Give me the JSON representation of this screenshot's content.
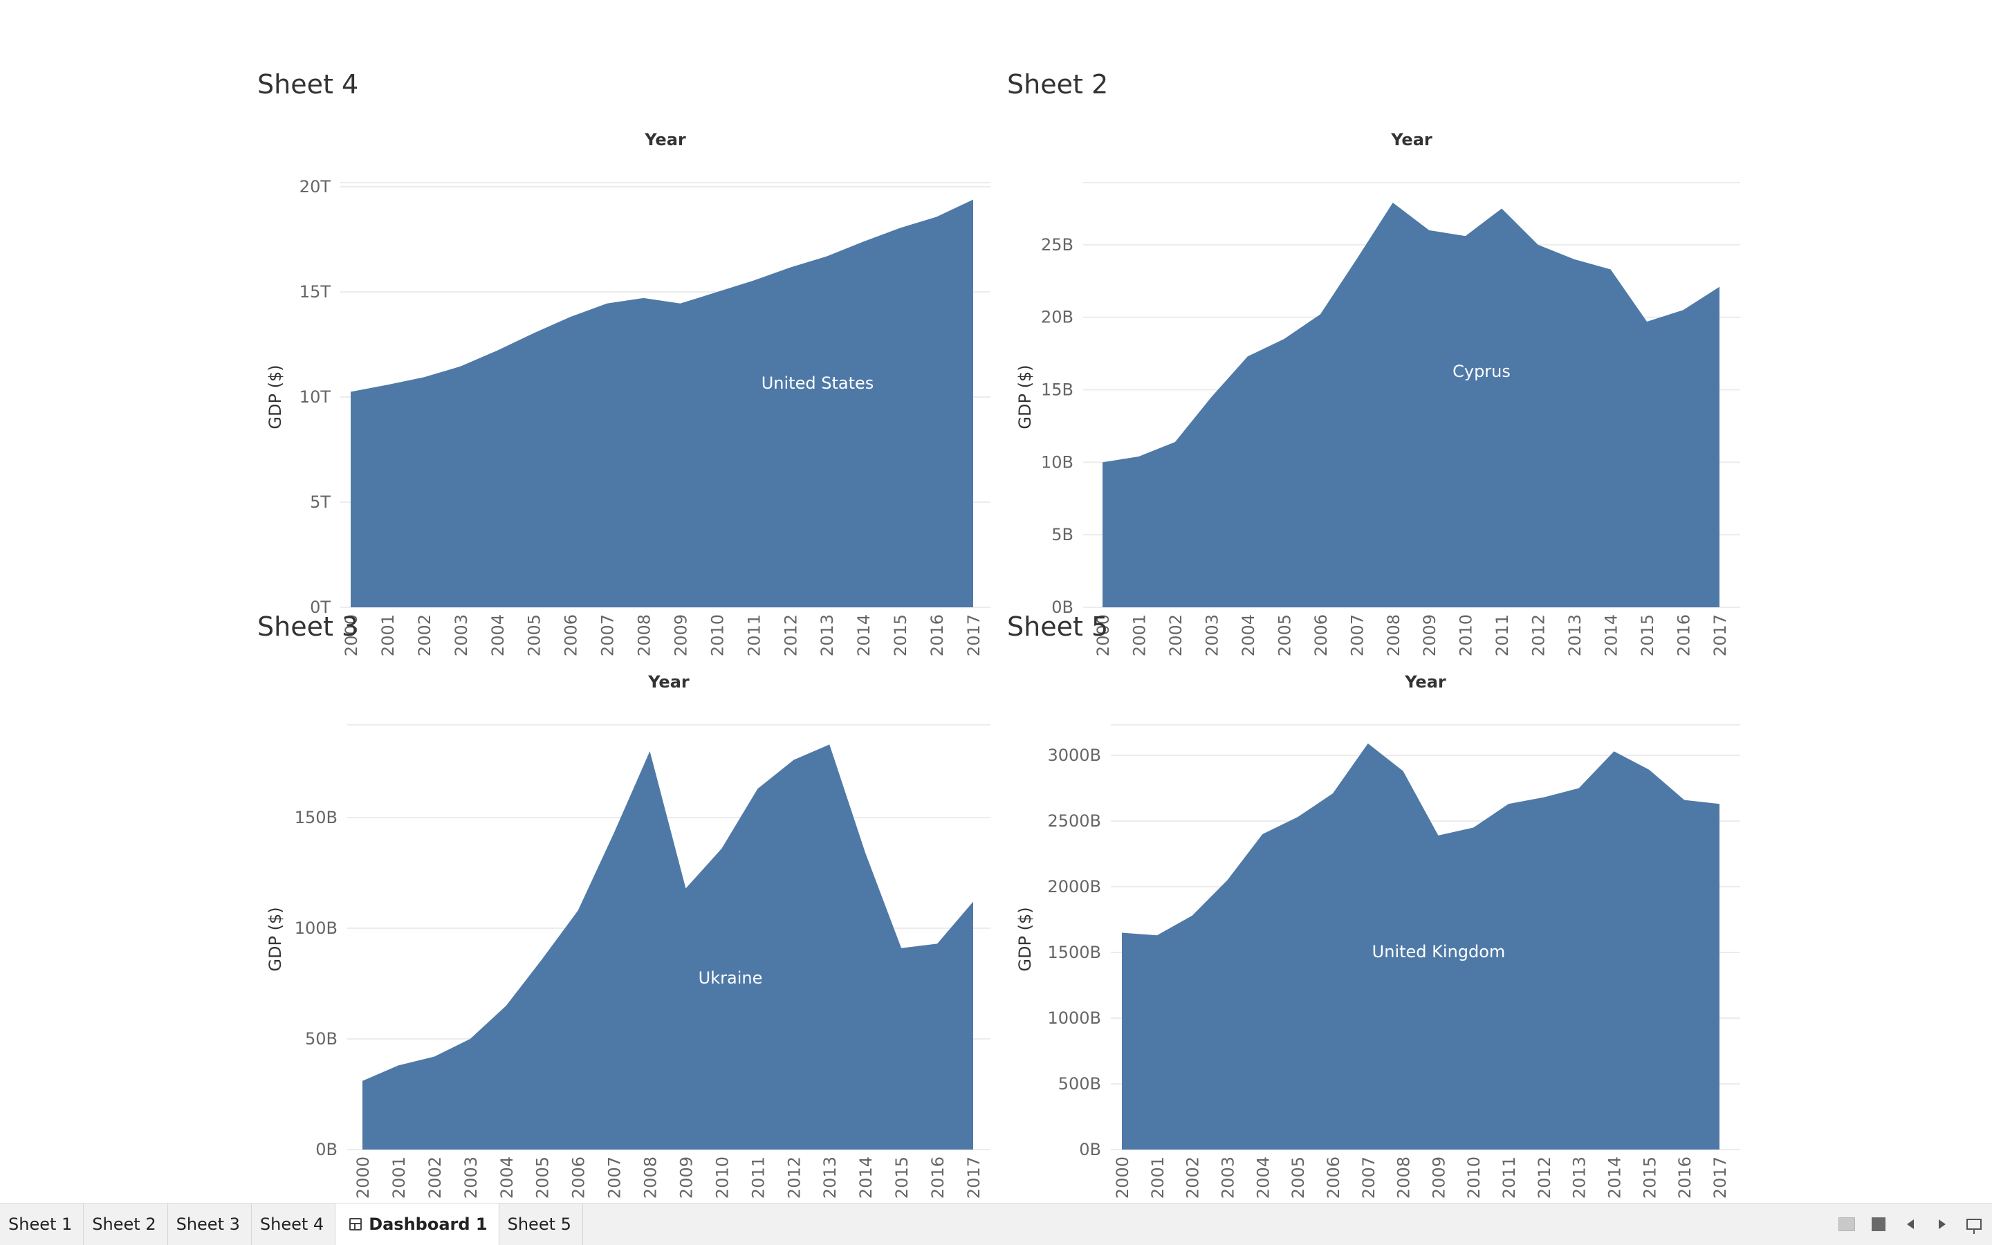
{
  "tabs": [
    {
      "label": "Sheet 1",
      "active": false
    },
    {
      "label": "Sheet 2",
      "active": false
    },
    {
      "label": "Sheet 3",
      "active": false
    },
    {
      "label": "Sheet 4",
      "active": false
    },
    {
      "label": "Dashboard 1",
      "active": true,
      "icon": "dashboard-grid-icon"
    },
    {
      "label": "Sheet 5",
      "active": false
    }
  ],
  "controls": [
    "show-sheets-icon",
    "full-view-icon",
    "previous-icon",
    "next-icon",
    "presentation-mode-icon"
  ],
  "colors": {
    "area_fill": "#4e79a7",
    "tabbar_bg": "#f1f1f1"
  },
  "chart_data": [
    {
      "sheet_title": "Sheet 4",
      "type": "area",
      "xlabel": "Year",
      "ylabel": "GDP ($)",
      "x": [
        "2000",
        "2001",
        "2002",
        "2003",
        "2004",
        "2005",
        "2006",
        "2007",
        "2008",
        "2009",
        "2010",
        "2011",
        "2012",
        "2013",
        "2014",
        "2015",
        "2016",
        "2017"
      ],
      "series": [
        {
          "name": "United States",
          "values": [
            10.25,
            10.58,
            10.94,
            11.46,
            12.21,
            13.04,
            13.81,
            14.45,
            14.71,
            14.45,
            14.99,
            15.54,
            16.16,
            16.69,
            17.39,
            18.04,
            18.57,
            19.39
          ]
        }
      ],
      "yticks": [
        0,
        5,
        10,
        15,
        20
      ],
      "ytick_labels": [
        "0T",
        "5T",
        "10T",
        "15T",
        "20T"
      ],
      "ylim": [
        0,
        20
      ],
      "unit": "T",
      "grid": true,
      "area_label_position": "lower-right"
    },
    {
      "sheet_title": "Sheet 2",
      "type": "area",
      "xlabel": "Year",
      "ylabel": "GDP ($)",
      "x": [
        "2000",
        "2001",
        "2002",
        "2003",
        "2004",
        "2005",
        "2006",
        "2007",
        "2008",
        "2009",
        "2010",
        "2011",
        "2012",
        "2013",
        "2014",
        "2015",
        "2016",
        "2017"
      ],
      "series": [
        {
          "name": "Cyprus",
          "values": [
            10.0,
            10.4,
            11.4,
            14.5,
            17.3,
            18.5,
            20.2,
            24.0,
            27.9,
            26.0,
            25.6,
            27.5,
            25.0,
            24.0,
            23.3,
            19.7,
            20.5,
            22.1
          ]
        }
      ],
      "yticks": [
        0,
        5,
        10,
        15,
        20,
        25
      ],
      "ytick_labels": [
        "0B",
        "5B",
        "10B",
        "15B",
        "20B",
        "25B"
      ],
      "ylim": [
        0,
        29
      ],
      "unit": "B",
      "grid": true,
      "area_label_position": "middle"
    },
    {
      "sheet_title": "Sheet 3",
      "type": "area",
      "xlabel": "Year",
      "ylabel": "GDP ($)",
      "x": [
        "2000",
        "2001",
        "2002",
        "2003",
        "2004",
        "2005",
        "2006",
        "2007",
        "2008",
        "2009",
        "2010",
        "2011",
        "2012",
        "2013",
        "2014",
        "2015",
        "2016",
        "2017"
      ],
      "series": [
        {
          "name": "Ukraine",
          "values": [
            31,
            38,
            42,
            50,
            65,
            86,
            108,
            143,
            180,
            118,
            136,
            163,
            176,
            183,
            134,
            91,
            93,
            112
          ]
        }
      ],
      "yticks": [
        0,
        50,
        100,
        150
      ],
      "ytick_labels": [
        "0B",
        "50B",
        "100B",
        "150B"
      ],
      "ylim": [
        0,
        190
      ],
      "unit": "B",
      "grid": true,
      "area_label_position": "lower-middle"
    },
    {
      "sheet_title": "Sheet 5",
      "type": "area",
      "xlabel": "Year",
      "ylabel": "GDP ($)",
      "x": [
        "2000",
        "2001",
        "2002",
        "2003",
        "2004",
        "2005",
        "2006",
        "2007",
        "2008",
        "2009",
        "2010",
        "2011",
        "2012",
        "2013",
        "2014",
        "2015",
        "2016",
        "2017"
      ],
      "series": [
        {
          "name": "United Kingdom",
          "values": [
            1650,
            1630,
            1780,
            2050,
            2400,
            2530,
            2710,
            3090,
            2880,
            2390,
            2450,
            2630,
            2680,
            2750,
            3030,
            2890,
            2660,
            2630
          ]
        }
      ],
      "yticks": [
        0,
        500,
        1000,
        1500,
        2000,
        2500,
        3000
      ],
      "ytick_labels": [
        "0B",
        "500B",
        "1000B",
        "1500B",
        "2000B",
        "2500B",
        "3000B"
      ],
      "ylim": [
        0,
        3200
      ],
      "unit": "B",
      "grid": true,
      "area_label_position": "lower-middle"
    }
  ]
}
